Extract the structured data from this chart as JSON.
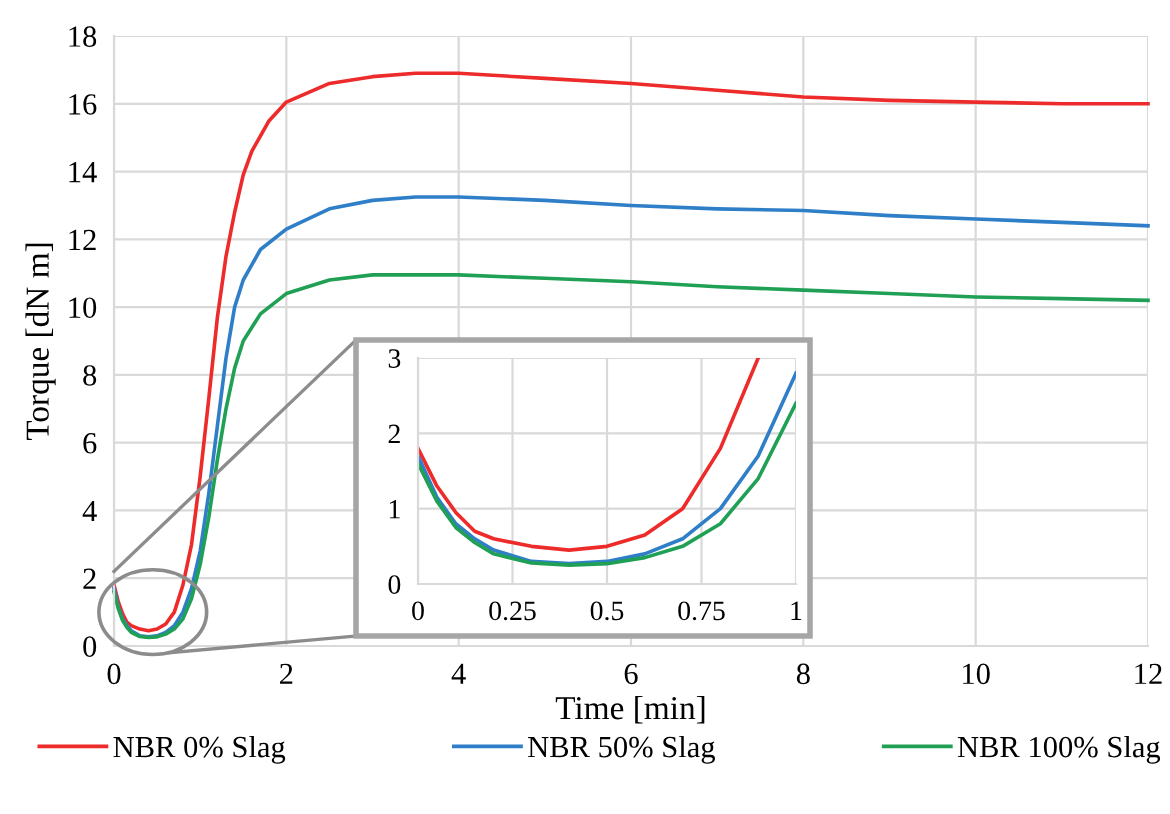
{
  "chart_data": [
    {
      "type": "line",
      "xlabel": "Time [min]",
      "ylabel": "Torque [dN m]",
      "xlim": [
        0,
        12
      ],
      "ylim": [
        0,
        18
      ],
      "xticks": [
        0,
        2,
        4,
        6,
        8,
        10,
        12
      ],
      "yticks": [
        0,
        2,
        4,
        6,
        8,
        10,
        12,
        14,
        16,
        18
      ],
      "grid": true,
      "legend": "bottom",
      "line_style": "solid",
      "marker": "none",
      "series": [
        {
          "name": "NBR 0% Slag",
          "color": "#ee2b2b",
          "x": [
            0,
            0.05,
            0.1,
            0.15,
            0.2,
            0.3,
            0.4,
            0.5,
            0.6,
            0.7,
            0.8,
            0.9,
            1.0,
            1.1,
            1.2,
            1.3,
            1.4,
            1.5,
            1.6,
            1.8,
            2,
            2.5,
            3,
            3.5,
            4,
            5,
            6,
            7,
            8,
            9,
            10,
            11,
            12
          ],
          "values": [
            1.8,
            1.3,
            0.95,
            0.7,
            0.6,
            0.5,
            0.45,
            0.5,
            0.65,
            1.0,
            1.8,
            3.0,
            5.0,
            7.3,
            9.7,
            11.5,
            12.8,
            13.9,
            14.6,
            15.5,
            16.05,
            16.6,
            16.8,
            16.9,
            16.9,
            16.75,
            16.6,
            16.4,
            16.2,
            16.1,
            16.05,
            16.0,
            16.0
          ]
        },
        {
          "name": "NBR 50% Slag",
          "color": "#2f7fc8",
          "x": [
            0,
            0.05,
            0.1,
            0.15,
            0.2,
            0.3,
            0.4,
            0.5,
            0.6,
            0.7,
            0.8,
            0.9,
            1.0,
            1.1,
            1.2,
            1.3,
            1.4,
            1.5,
            1.7,
            2,
            2.5,
            3,
            3.5,
            4,
            5,
            6,
            7,
            8,
            9,
            10,
            11,
            12
          ],
          "values": [
            1.7,
            1.15,
            0.8,
            0.6,
            0.45,
            0.3,
            0.27,
            0.3,
            0.4,
            0.6,
            1.0,
            1.7,
            2.8,
            4.5,
            6.5,
            8.5,
            10.0,
            10.8,
            11.7,
            12.3,
            12.9,
            13.15,
            13.25,
            13.25,
            13.15,
            13.0,
            12.9,
            12.85,
            12.7,
            12.6,
            12.5,
            12.4
          ]
        },
        {
          "name": "NBR 100% Slag",
          "color": "#1fa055",
          "x": [
            0,
            0.05,
            0.1,
            0.15,
            0.2,
            0.3,
            0.4,
            0.5,
            0.6,
            0.7,
            0.8,
            0.9,
            1.0,
            1.1,
            1.2,
            1.3,
            1.4,
            1.5,
            1.7,
            2,
            2.5,
            3,
            4,
            5,
            6,
            7,
            8,
            9,
            10,
            11,
            12
          ],
          "values": [
            1.6,
            1.1,
            0.75,
            0.55,
            0.4,
            0.28,
            0.25,
            0.27,
            0.35,
            0.5,
            0.8,
            1.4,
            2.4,
            3.8,
            5.5,
            7.0,
            8.2,
            9.0,
            9.8,
            10.4,
            10.8,
            10.95,
            10.95,
            10.85,
            10.75,
            10.6,
            10.5,
            10.4,
            10.3,
            10.25,
            10.2
          ]
        }
      ]
    },
    {
      "type": "line",
      "xlim": [
        0,
        1
      ],
      "ylim": [
        0,
        3
      ],
      "xticks": [
        0,
        0.25,
        0.5,
        0.75,
        1
      ],
      "yticks": [
        0,
        1,
        2,
        3
      ],
      "grid": true,
      "line_style": "solid",
      "marker": "none",
      "series": [
        {
          "color": "#ee2b2b",
          "x": [
            0,
            0.05,
            0.1,
            0.15,
            0.2,
            0.3,
            0.4,
            0.5,
            0.6,
            0.7,
            0.8,
            0.9
          ],
          "values": [
            1.8,
            1.3,
            0.95,
            0.7,
            0.6,
            0.5,
            0.45,
            0.5,
            0.65,
            1.0,
            1.8,
            3.0
          ]
        },
        {
          "color": "#2f7fc8",
          "x": [
            0,
            0.05,
            0.1,
            0.15,
            0.2,
            0.3,
            0.4,
            0.5,
            0.6,
            0.7,
            0.8,
            0.9,
            1.0
          ],
          "values": [
            1.7,
            1.15,
            0.8,
            0.6,
            0.45,
            0.3,
            0.27,
            0.3,
            0.4,
            0.6,
            1.0,
            1.7,
            2.8
          ]
        },
        {
          "color": "#1fa055",
          "x": [
            0,
            0.05,
            0.1,
            0.15,
            0.2,
            0.3,
            0.4,
            0.5,
            0.6,
            0.7,
            0.8,
            0.9,
            1.0
          ],
          "values": [
            1.6,
            1.1,
            0.75,
            0.55,
            0.4,
            0.28,
            0.25,
            0.27,
            0.35,
            0.5,
            0.8,
            1.4,
            2.4
          ]
        }
      ]
    }
  ]
}
